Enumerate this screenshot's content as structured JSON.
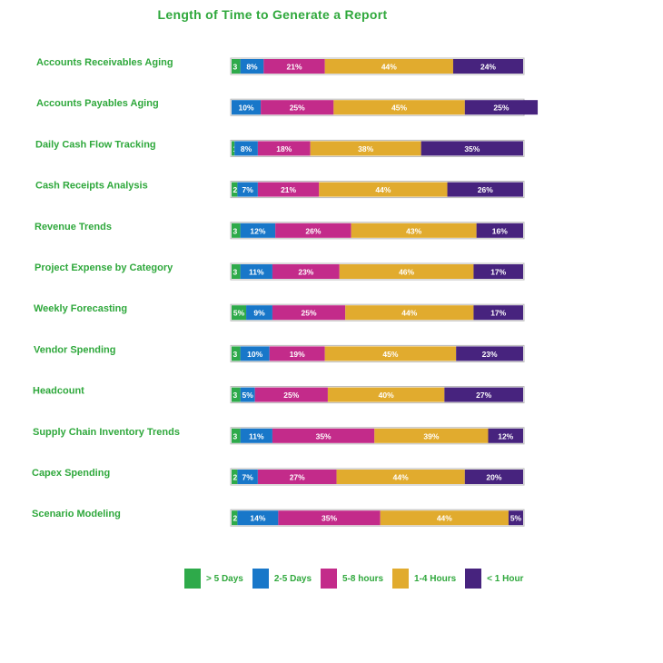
{
  "colors": {
    "title": "#2fa83c",
    "category_label": "#2fa83c",
    "bar_outline": "#b8b8b8",
    "segment_text": "#ffffff"
  },
  "chart_data": {
    "type": "bar",
    "orientation": "horizontal",
    "stacked": true,
    "normalized_percent": true,
    "title": "Length of Time to Generate a Report",
    "xlabel": "",
    "ylabel": "",
    "xlim": [
      0,
      100
    ],
    "grid": false,
    "legend_position": "bottom",
    "categories": [
      "Accounts Receivables Aging",
      "Accounts Payables Aging",
      "Daily Cash Flow Tracking",
      "Cash Receipts Analysis",
      "Revenue Trends",
      "Project Expense by Category",
      "Weekly Forecasting",
      "Vendor Spending",
      "Headcount",
      "Supply Chain Inventory Trends",
      "Capex Spending",
      "Scenario Modeling"
    ],
    "series": [
      {
        "name": "> 5 Days",
        "color": "#2eaa4a",
        "values": [
          3,
          0,
          1,
          2,
          3,
          3,
          5,
          3,
          3,
          3,
          2,
          2
        ],
        "labels": [
          "3",
          "",
          "1",
          "2",
          "3",
          "3",
          "5%",
          "3",
          "3",
          "3",
          "2",
          "2"
        ]
      },
      {
        "name": "2-5 Days",
        "color": "#1877c9",
        "values": [
          8,
          10,
          8,
          7,
          12,
          11,
          9,
          10,
          5,
          11,
          7,
          14
        ],
        "labels": [
          "8%",
          "10%",
          "8%",
          "7%",
          "12%",
          "11%",
          "9%",
          "10%",
          "5%",
          "11%",
          "7%",
          "14%"
        ]
      },
      {
        "name": "5-8 hours",
        "color": "#c32b8a",
        "values": [
          21,
          25,
          18,
          21,
          26,
          23,
          25,
          19,
          25,
          35,
          27,
          35
        ],
        "labels": [
          "21%",
          "25%",
          "18%",
          "21%",
          "26%",
          "23%",
          "25%",
          "19%",
          "25%",
          "35%",
          "27%",
          "35%"
        ]
      },
      {
        "name": "1-4 Hours",
        "color": "#e1ab2e",
        "values": [
          44,
          45,
          38,
          44,
          43,
          46,
          44,
          45,
          40,
          39,
          44,
          44
        ],
        "labels": [
          "44%",
          "45%",
          "38%",
          "44%",
          "43%",
          "46%",
          "44%",
          "45%",
          "40%",
          "39%",
          "44%",
          "44%"
        ]
      },
      {
        "name": "< 1 Hour",
        "color": "#47237e",
        "values": [
          24,
          25,
          35,
          26,
          16,
          17,
          17,
          23,
          27,
          12,
          20,
          5
        ],
        "labels": [
          "24%",
          "25%",
          "35%",
          "26%",
          "16%",
          "17%",
          "17%",
          "23%",
          "27%",
          "12%",
          "20%",
          "5%"
        ]
      }
    ]
  }
}
